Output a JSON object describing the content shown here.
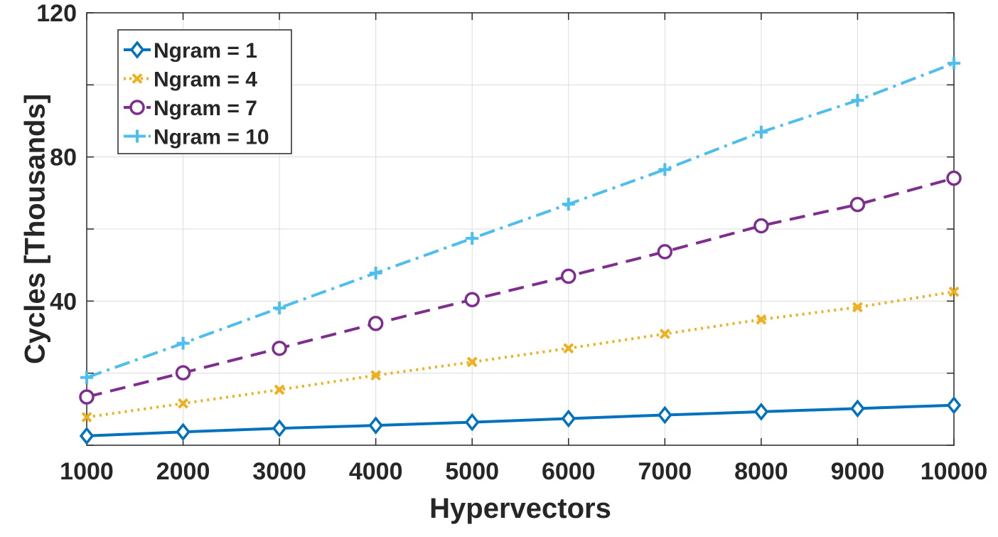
{
  "chart_data": {
    "type": "line",
    "title": "",
    "xlabel": "Hypervectors",
    "ylabel": "Cycles [Thousands]",
    "xlim": [
      1000,
      10000
    ],
    "ylim": [
      0,
      120
    ],
    "x_ticks": [
      1000,
      2000,
      3000,
      4000,
      5000,
      6000,
      7000,
      8000,
      9000,
      10000
    ],
    "y_ticks": [
      0,
      20,
      40,
      60,
      80,
      100,
      120
    ],
    "y_tick_labels": [
      "",
      "",
      "40",
      "",
      "80",
      "",
      "120"
    ],
    "grid": true,
    "legend_position": "top-left",
    "x": [
      1000,
      2000,
      3000,
      4000,
      5000,
      6000,
      7000,
      8000,
      9000,
      10000
    ],
    "series": [
      {
        "name": "Ngram = 1",
        "color": "#0072BD",
        "line_style": "solid",
        "marker": "diamond",
        "values": [
          2.6,
          3.7,
          4.7,
          5.5,
          6.4,
          7.4,
          8.4,
          9.3,
          10.2,
          11.1
        ]
      },
      {
        "name": "Ngram = 4",
        "color": "#EDB120",
        "line_style": "dotted",
        "marker": "x",
        "values": [
          7.8,
          11.6,
          15.4,
          19.4,
          23.1,
          26.9,
          30.9,
          34.9,
          38.3,
          42.6
        ]
      },
      {
        "name": "Ngram = 7",
        "color": "#7E2F8E",
        "line_style": "dashed",
        "marker": "circle",
        "values": [
          13.4,
          20.1,
          26.9,
          33.8,
          40.4,
          46.9,
          53.7,
          60.9,
          66.8,
          74.1
        ]
      },
      {
        "name": "Ngram = 10",
        "color": "#4DBEEE",
        "line_style": "dash-dot",
        "marker": "plus",
        "values": [
          18.8,
          28.3,
          38.1,
          47.8,
          57.4,
          66.9,
          76.5,
          86.9,
          95.7,
          106.0
        ]
      }
    ]
  }
}
